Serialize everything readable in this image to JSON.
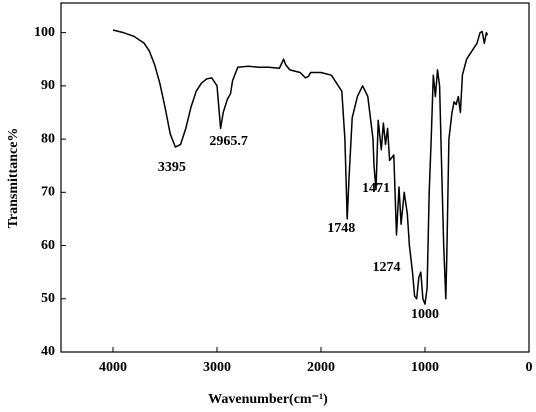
{
  "chart_data": {
    "type": "line",
    "x_label": "Wavenumber(cm⁻¹)",
    "y_label": "Transmittance%",
    "xlim": [
      4500,
      0
    ],
    "ylim": [
      40,
      105
    ],
    "xticks": [
      4000,
      3000,
      2000,
      1000,
      0
    ],
    "yticks": [
      40,
      50,
      60,
      70,
      80,
      90,
      100
    ],
    "peak_labels": [
      3395,
      2965.7,
      1748,
      1471,
      1274,
      1000
    ],
    "series": [
      {
        "color": "#000000",
        "x": [
          4000,
          3900,
          3800,
          3700,
          3650,
          3600,
          3550,
          3500,
          3450,
          3400,
          3350,
          3300,
          3250,
          3200,
          3150,
          3100,
          3050,
          3000,
          2965.7,
          2940,
          2900,
          2870,
          2850,
          2800,
          2700,
          2600,
          2500,
          2400,
          2360,
          2340,
          2300,
          2200,
          2150,
          2120,
          2100,
          2000,
          1900,
          1800,
          1770,
          1748,
          1730,
          1700,
          1650,
          1600,
          1550,
          1500,
          1490,
          1471,
          1450,
          1420,
          1400,
          1380,
          1360,
          1340,
          1300,
          1274,
          1250,
          1230,
          1200,
          1170,
          1150,
          1120,
          1100,
          1080,
          1060,
          1040,
          1020,
          1000,
          980,
          960,
          940,
          920,
          900,
          880,
          860,
          840,
          820,
          800,
          790,
          770,
          740,
          720,
          700,
          680,
          660,
          640,
          600,
          550,
          500,
          470,
          450,
          430,
          410,
          400
        ],
        "values": [
          100.5,
          100,
          99.3,
          98,
          96.5,
          94,
          90.5,
          86,
          81,
          78.5,
          79,
          82,
          86,
          89,
          90.5,
          91.3,
          91.5,
          90,
          82,
          85,
          87.5,
          88.5,
          91,
          93.5,
          93.7,
          93.5,
          93.5,
          93.3,
          95,
          94,
          93,
          92.5,
          91.5,
          91.8,
          92.5,
          92.5,
          92,
          89,
          80,
          65,
          73,
          84,
          88,
          90,
          88,
          80,
          75,
          70.5,
          83.5,
          78,
          83,
          79,
          82,
          76,
          77,
          62,
          71,
          64,
          70,
          66,
          60,
          55,
          50.5,
          50,
          54,
          55,
          50,
          49,
          52,
          70,
          80,
          92,
          88,
          93,
          90,
          75,
          60,
          50,
          58,
          80,
          85,
          87,
          86.5,
          88,
          85,
          92,
          95,
          96.5,
          98,
          100,
          100.2,
          98,
          100,
          99.5
        ]
      }
    ]
  }
}
